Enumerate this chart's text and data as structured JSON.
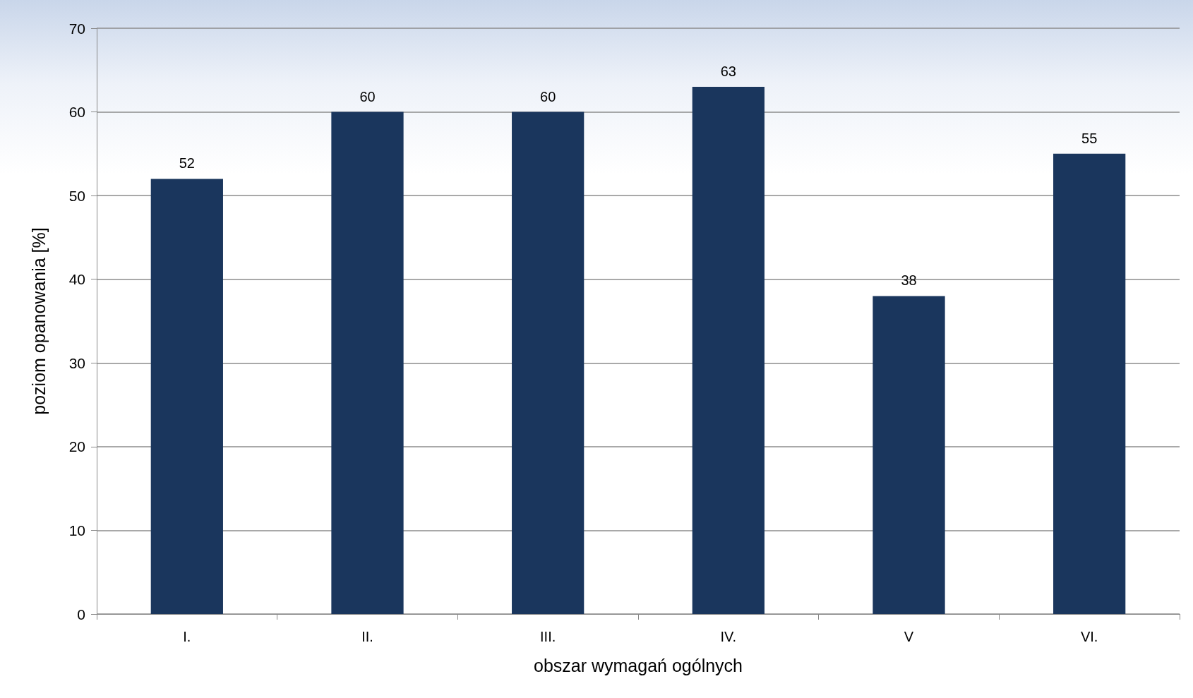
{
  "chart_data": {
    "type": "bar",
    "xlabel": "obszar wymagań ogólnych",
    "ylabel": "poziom opanowania [%]",
    "categories": [
      "I.",
      "II.",
      "III.",
      "IV.",
      "V",
      "VI."
    ],
    "values": [
      52,
      60,
      60,
      63,
      38,
      55
    ],
    "color": "#1a365d",
    "ylim": [
      0,
      70
    ],
    "yticks": [
      0,
      10,
      20,
      30,
      40,
      50,
      60,
      70
    ],
    "grid": "y",
    "data_labels": true
  }
}
